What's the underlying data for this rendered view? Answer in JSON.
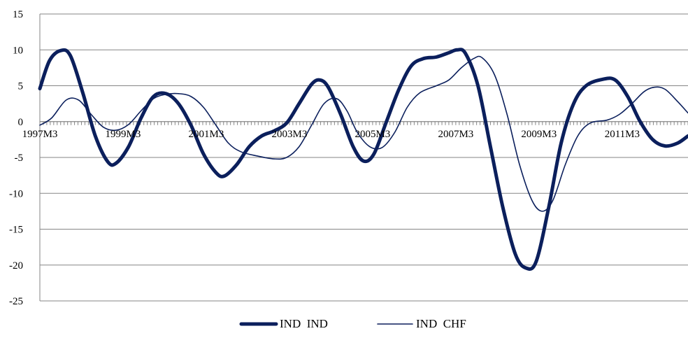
{
  "chart_data": {
    "type": "line",
    "title": "",
    "xlabel": "",
    "ylabel": "",
    "ylim": [
      -25,
      15
    ],
    "yticks": [
      15,
      10,
      5,
      0,
      -5,
      -10,
      -15,
      -20,
      -25
    ],
    "x_tick_labels": [
      "1997M3",
      "1999M3",
      "2001M3",
      "2003M3",
      "2005M3",
      "2007M3",
      "2009M3",
      "2011M3"
    ],
    "x_start": 1997.167,
    "x_end": 2012.75,
    "grid": true,
    "legend_position": "bottom",
    "series": [
      {
        "name": "IND  IND",
        "color": "#0b1f5c",
        "weight": "thick",
        "points": [
          [
            1997.167,
            4.6
          ],
          [
            1997.4,
            8.5
          ],
          [
            1997.667,
            9.9
          ],
          [
            1997.9,
            9.2
          ],
          [
            1998.2,
            4.0
          ],
          [
            1998.5,
            -2.0
          ],
          [
            1998.8,
            -5.6
          ],
          [
            1999.0,
            -5.8
          ],
          [
            1999.3,
            -3.5
          ],
          [
            1999.6,
            0.5
          ],
          [
            1999.9,
            3.5
          ],
          [
            2000.2,
            3.9
          ],
          [
            2000.5,
            2.5
          ],
          [
            2000.8,
            -0.5
          ],
          [
            2001.1,
            -4.5
          ],
          [
            2001.4,
            -7.1
          ],
          [
            2001.6,
            -7.6
          ],
          [
            2001.9,
            -6.0
          ],
          [
            2002.2,
            -3.5
          ],
          [
            2002.5,
            -2.0
          ],
          [
            2002.8,
            -1.3
          ],
          [
            2003.1,
            -0.2
          ],
          [
            2003.4,
            2.5
          ],
          [
            2003.7,
            5.2
          ],
          [
            2003.9,
            5.8
          ],
          [
            2004.1,
            4.8
          ],
          [
            2004.4,
            1.0
          ],
          [
            2004.7,
            -3.5
          ],
          [
            2004.95,
            -5.5
          ],
          [
            2005.2,
            -4.5
          ],
          [
            2005.5,
            0.0
          ],
          [
            2005.8,
            4.5
          ],
          [
            2006.1,
            7.8
          ],
          [
            2006.4,
            8.8
          ],
          [
            2006.7,
            9.0
          ],
          [
            2007.0,
            9.6
          ],
          [
            2007.2,
            10.0
          ],
          [
            2007.4,
            9.5
          ],
          [
            2007.7,
            5.0
          ],
          [
            2008.0,
            -3.5
          ],
          [
            2008.3,
            -12.0
          ],
          [
            2008.6,
            -18.5
          ],
          [
            2008.85,
            -20.4
          ],
          [
            2009.1,
            -19.5
          ],
          [
            2009.4,
            -12.0
          ],
          [
            2009.7,
            -3.0
          ],
          [
            2010.0,
            2.5
          ],
          [
            2010.3,
            5.0
          ],
          [
            2010.7,
            5.9
          ],
          [
            2011.0,
            5.8
          ],
          [
            2011.3,
            3.5
          ],
          [
            2011.6,
            0.0
          ],
          [
            2011.9,
            -2.5
          ],
          [
            2012.2,
            -3.4
          ],
          [
            2012.5,
            -3.0
          ],
          [
            2012.75,
            -2.0
          ]
        ]
      },
      {
        "name": "IND  CHF",
        "color": "#0b1f5c",
        "weight": "thin",
        "points": [
          [
            1997.167,
            -0.5
          ],
          [
            1997.45,
            0.5
          ],
          [
            1997.8,
            3.0
          ],
          [
            1998.1,
            3.0
          ],
          [
            1998.4,
            1.0
          ],
          [
            1998.7,
            -0.8
          ],
          [
            1999.0,
            -1.2
          ],
          [
            1999.3,
            -0.4
          ],
          [
            1999.6,
            1.5
          ],
          [
            1999.9,
            3.2
          ],
          [
            2000.2,
            3.8
          ],
          [
            2000.5,
            3.9
          ],
          [
            2000.8,
            3.5
          ],
          [
            2001.1,
            2.0
          ],
          [
            2001.4,
            -0.5
          ],
          [
            2001.7,
            -3.0
          ],
          [
            2002.0,
            -4.2
          ],
          [
            2002.4,
            -4.8
          ],
          [
            2002.8,
            -5.2
          ],
          [
            2003.1,
            -5.0
          ],
          [
            2003.4,
            -3.5
          ],
          [
            2003.7,
            -0.5
          ],
          [
            2004.0,
            2.5
          ],
          [
            2004.3,
            3.2
          ],
          [
            2004.55,
            1.5
          ],
          [
            2004.8,
            -1.5
          ],
          [
            2005.1,
            -3.5
          ],
          [
            2005.4,
            -3.6
          ],
          [
            2005.7,
            -1.5
          ],
          [
            2006.0,
            2.0
          ],
          [
            2006.3,
            4.0
          ],
          [
            2006.7,
            5.0
          ],
          [
            2007.0,
            5.8
          ],
          [
            2007.3,
            7.5
          ],
          [
            2007.6,
            8.8
          ],
          [
            2007.8,
            8.9
          ],
          [
            2008.1,
            6.5
          ],
          [
            2008.4,
            1.0
          ],
          [
            2008.7,
            -6.0
          ],
          [
            2009.0,
            -11.0
          ],
          [
            2009.25,
            -12.5
          ],
          [
            2009.5,
            -11.0
          ],
          [
            2009.8,
            -6.0
          ],
          [
            2010.1,
            -2.0
          ],
          [
            2010.4,
            -0.2
          ],
          [
            2010.8,
            0.2
          ],
          [
            2011.1,
            1.0
          ],
          [
            2011.4,
            2.5
          ],
          [
            2011.7,
            4.2
          ],
          [
            2011.95,
            4.8
          ],
          [
            2012.2,
            4.5
          ],
          [
            2012.5,
            2.8
          ],
          [
            2012.75,
            1.2
          ]
        ]
      }
    ]
  }
}
